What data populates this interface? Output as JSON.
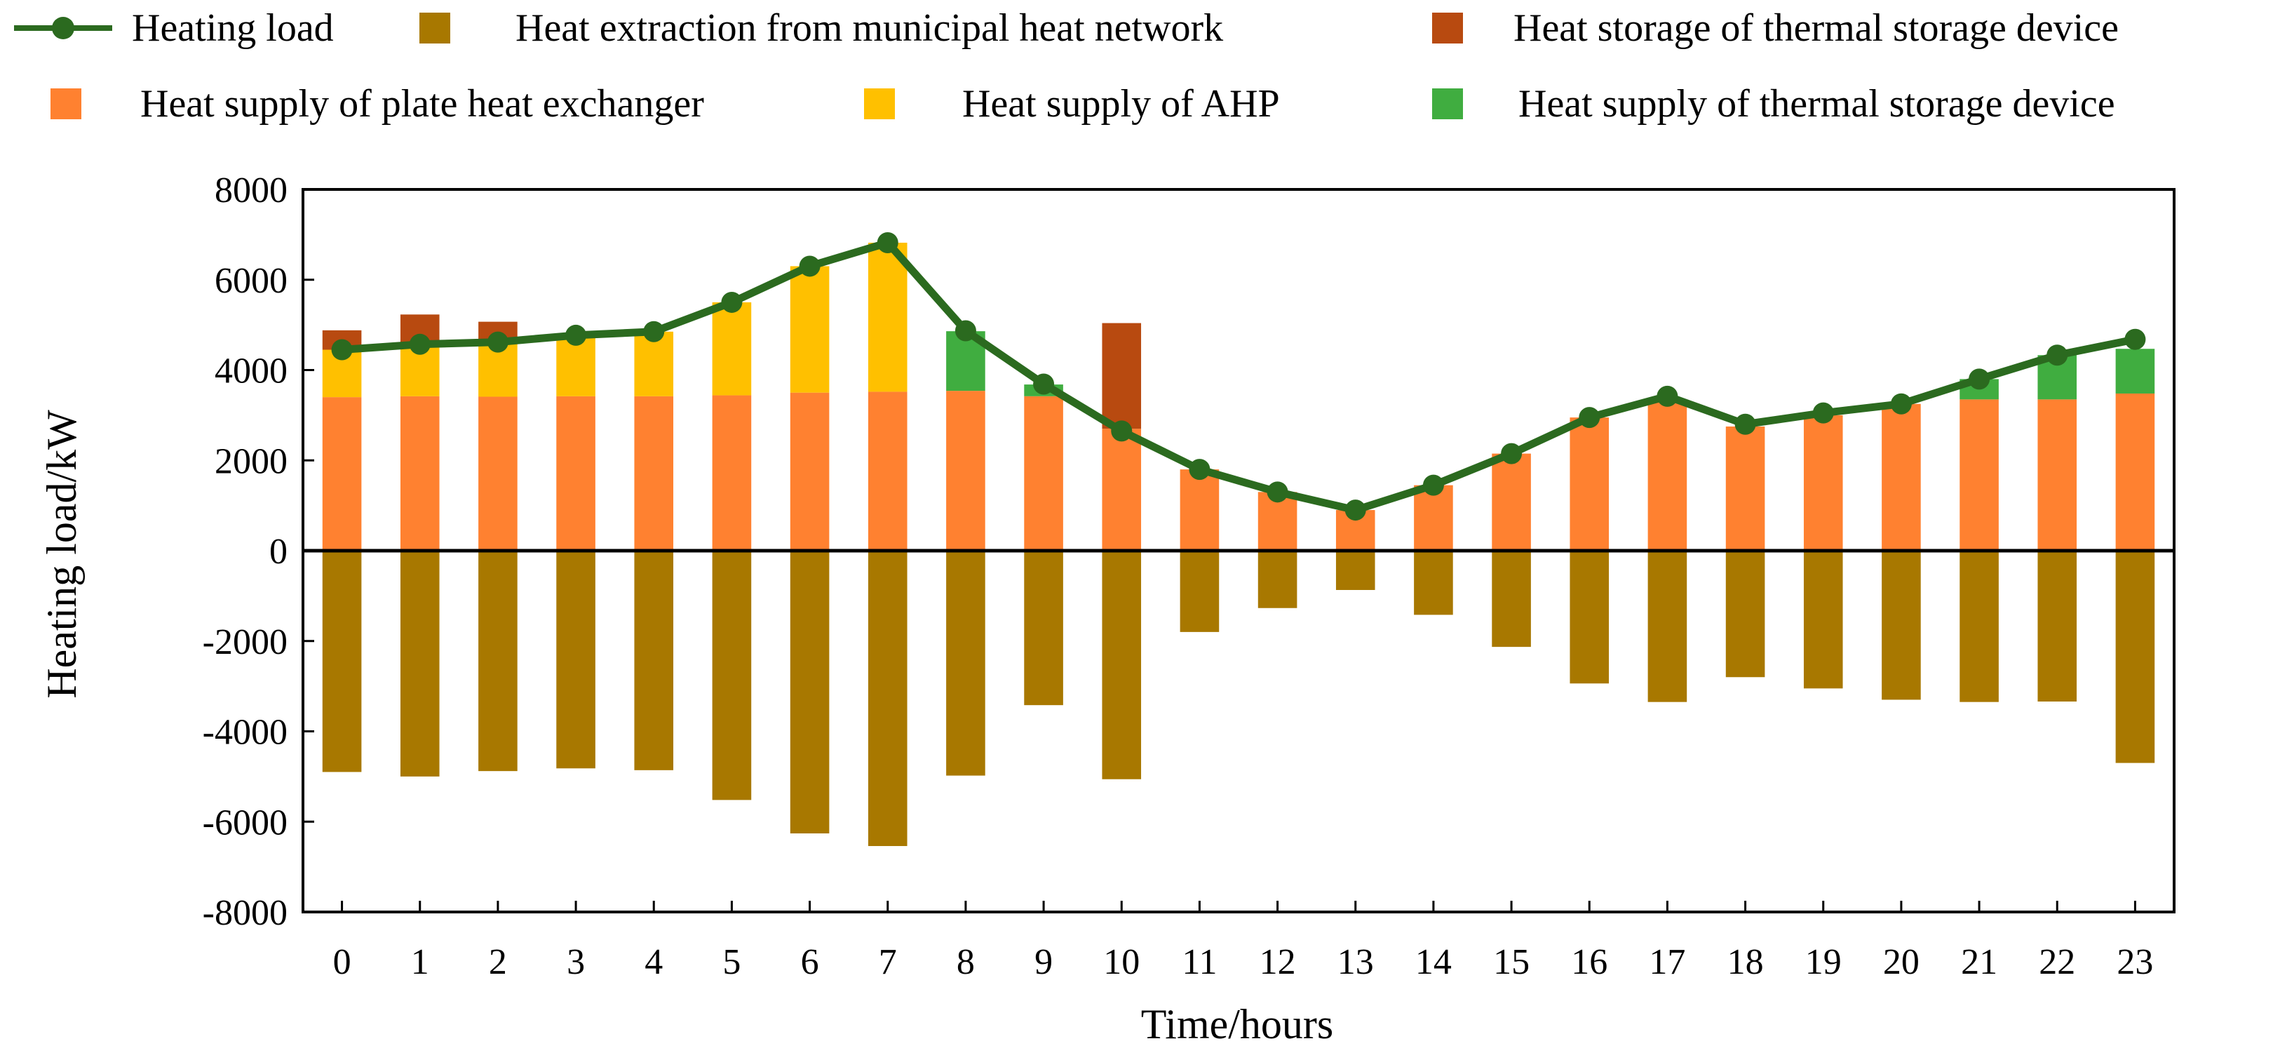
{
  "chart_data": {
    "type": "bar",
    "title": "",
    "xlabel": "Time/hours",
    "ylabel": "Heating  load/kW",
    "ylim": [
      -8000,
      8000
    ],
    "yticks": [
      -8000,
      -6000,
      -4000,
      -2000,
      0,
      2000,
      4000,
      6000,
      8000
    ],
    "categories": [
      "0",
      "1",
      "2",
      "3",
      "4",
      "5",
      "6",
      "7",
      "8",
      "9",
      "10",
      "11",
      "12",
      "13",
      "14",
      "15",
      "16",
      "17",
      "18",
      "19",
      "20",
      "21",
      "22",
      "23"
    ],
    "legend": {
      "position": "top",
      "entries": [
        {
          "key": "heating_load",
          "label": "Heating load"
        },
        {
          "key": "municipal",
          "label": "Heat extraction from municipal heat network"
        },
        {
          "key": "storage_in",
          "label": "Heat storage of thermal storage device"
        },
        {
          "key": "plate_hx",
          "label": "Heat supply of plate heat exchanger"
        },
        {
          "key": "ahp",
          "label": "Heat supply of AHP"
        },
        {
          "key": "storage_out",
          "label": "Heat supply of thermal storage device"
        }
      ]
    },
    "series": [
      {
        "key": "plate_hx",
        "name": "Heat supply of plate heat exchanger",
        "color": "#FF8130",
        "stack": "supply",
        "values": [
          3400,
          3420,
          3410,
          3420,
          3420,
          3440,
          3500,
          3520,
          3540,
          3420,
          2700,
          1800,
          1300,
          900,
          1450,
          2150,
          2950,
          3320,
          2750,
          3000,
          3250,
          3350,
          3350,
          3480
        ]
      },
      {
        "key": "ahp",
        "name": "Heat supply of AHP",
        "color": "#FFC000",
        "stack": "supply",
        "values": [
          1050,
          1150,
          1200,
          1350,
          1430,
          2060,
          2800,
          3300,
          0,
          0,
          0,
          0,
          0,
          0,
          0,
          0,
          0,
          0,
          0,
          0,
          0,
          0,
          0,
          0
        ]
      },
      {
        "key": "storage_out",
        "name": "Heat supply of thermal storage device",
        "color": "#40AD40",
        "stack": "supply",
        "values": [
          0,
          0,
          0,
          0,
          0,
          0,
          0,
          0,
          1320,
          260,
          0,
          0,
          0,
          0,
          0,
          0,
          0,
          0,
          0,
          0,
          0,
          450,
          980,
          990
        ]
      },
      {
        "key": "storage_in",
        "name": "Heat storage of thermal storage device",
        "color": "#B84A10",
        "stack": "supply",
        "values": [
          430,
          660,
          460,
          0,
          0,
          0,
          0,
          0,
          0,
          0,
          2340,
          0,
          0,
          0,
          0,
          0,
          0,
          0,
          0,
          0,
          0,
          0,
          0,
          0
        ]
      },
      {
        "key": "municipal",
        "name": "Heat extraction from municipal heat network",
        "color": "#A87800",
        "stack": "extraction",
        "values": [
          -4900,
          -5000,
          -4880,
          -4820,
          -4860,
          -5520,
          -6260,
          -6540,
          -4980,
          -3420,
          -5060,
          -1800,
          -1270,
          -870,
          -1420,
          -2130,
          -2940,
          -3350,
          -2800,
          -3050,
          -3300,
          -3350,
          -3340,
          -4700
        ]
      },
      {
        "key": "heating_load",
        "name": "Heating load",
        "color": "#2B6A1F",
        "type": "line",
        "values": [
          4450,
          4570,
          4620,
          4770,
          4850,
          5500,
          6300,
          6820,
          4870,
          3690,
          2650,
          1800,
          1300,
          900,
          1450,
          2150,
          2950,
          3420,
          2800,
          3050,
          3250,
          3800,
          4330,
          4680
        ]
      }
    ]
  }
}
